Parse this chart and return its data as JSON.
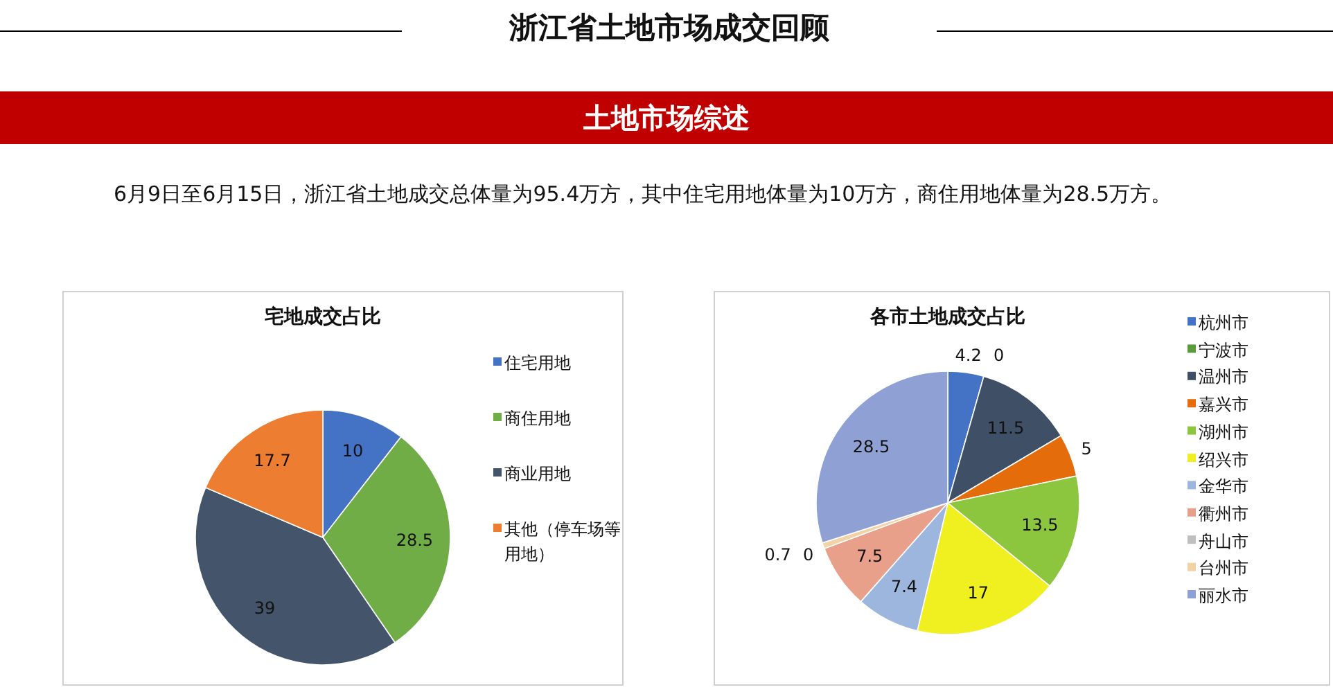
{
  "chart_data": [
    {
      "type": "pie",
      "title": "宅地成交占比",
      "annotations": [
        "浙江省土地市场成交回顾",
        "土地市场综述",
        "6月9日至6月15日，浙江省土地成交总体量为95.4万方，其中住宅用地体量为10万方，商住用地体量为28.5万方。"
      ],
      "categories": [
        "住宅用地",
        "商住用地",
        "商业用地",
        "其他（停车场等用地）"
      ],
      "values": [
        10,
        28.5,
        39,
        17.7
      ],
      "colors": [
        "#4472c4",
        "#70ad47",
        "#44546a",
        "#ed7d31"
      ],
      "data_labels": true,
      "legend": "right"
    },
    {
      "type": "pie",
      "title": "各市土地成交占比",
      "categories": [
        "杭州市",
        "宁波市",
        "温州市",
        "嘉兴市",
        "湖州市",
        "绍兴市",
        "金华市",
        "衢州市",
        "舟山市",
        "台州市",
        "丽水市"
      ],
      "values": [
        4.2,
        0,
        11.5,
        5,
        13.5,
        17,
        7.4,
        7.5,
        0,
        0.7,
        28.5
      ],
      "colors": [
        "#4472c4",
        "#5b9b3a",
        "#3f4f66",
        "#e46c0a",
        "#8cc63f",
        "#f0f020",
        "#9cb6de",
        "#e8a08a",
        "#bfbfbf",
        "#f2d3a6",
        "#8ea0d4"
      ],
      "value_labels": [
        "4.2",
        "0",
        "11.5",
        "5",
        "13.5",
        "17",
        "7.4",
        "7.5",
        "0",
        "0.7",
        "28.5"
      ],
      "legend": "right"
    }
  ]
}
